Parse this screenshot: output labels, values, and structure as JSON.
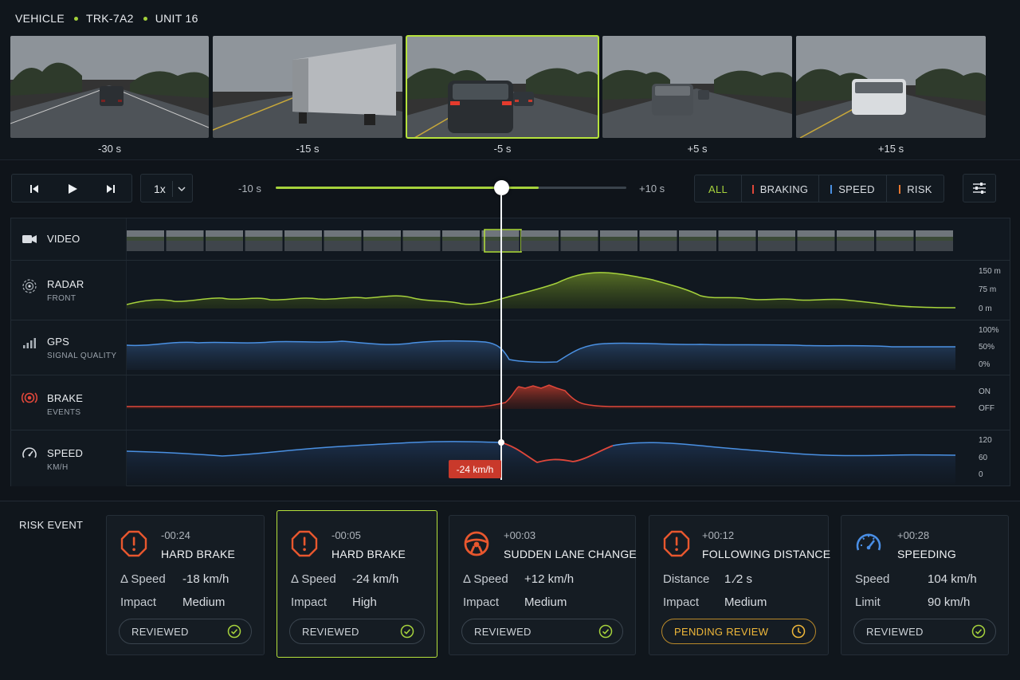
{
  "header": {
    "vehicle": "VEHICLE",
    "truck_id": "TRK-7A2",
    "unit": "UNIT 16"
  },
  "camera_frames": [
    {
      "label": "-30 s"
    },
    {
      "label": "-15 s"
    },
    {
      "label": "-5 s",
      "selected": true
    },
    {
      "label": "+5 s"
    },
    {
      "label": "+15 s"
    }
  ],
  "playback": {
    "speed": "1x",
    "range_start": "-10 s",
    "range_end": "+10 s",
    "progress": 0.75,
    "playhead": 0.65
  },
  "filters": [
    {
      "label": "ALL",
      "color": "#a6d23c",
      "active": true
    },
    {
      "label": "BRAKING",
      "color": "#e0473a"
    },
    {
      "label": "SPEED",
      "color": "#4a90e2"
    },
    {
      "label": "RISK",
      "color": "#e8772e"
    }
  ],
  "lanes": {
    "video": {
      "title": "VIDEO"
    },
    "radar": {
      "title": "RADAR",
      "sub": "FRONT",
      "scale": [
        "150 m",
        "75 m",
        "0 m"
      ],
      "color": "#a6d23c"
    },
    "gps": {
      "title": "GPS",
      "sub": "SIGNAL QUALITY",
      "scale": [
        "100%",
        "50%",
        "0%"
      ],
      "color": "#4a90e2"
    },
    "brake": {
      "title": "BRAKE",
      "sub": "EVENTS",
      "scale": [
        "ON",
        "OFF"
      ],
      "color": "#e0473a"
    },
    "speed": {
      "title": "SPEED",
      "sub": "KM/H",
      "scale": [
        "120",
        "60",
        "0"
      ],
      "color": "#4a90e2",
      "delta_badge": "-24 km/h"
    }
  },
  "risk": {
    "title": "RISK EVENT",
    "events": [
      {
        "time": "-00:24",
        "title": "HARD BRAKE",
        "icon": "alert-octagon-icon",
        "k1": "Δ Speed",
        "v1": "-18 km/h",
        "k2": "Impact",
        "v2": "Medium",
        "status": "REVIEWED",
        "pending": false
      },
      {
        "time": "-00:05",
        "title": "HARD BRAKE",
        "icon": "alert-octagon-icon",
        "k1": "Δ Speed",
        "v1": "-24 km/h",
        "k2": "Impact",
        "v2": "High",
        "status": "REVIEWED",
        "pending": false,
        "selected": true
      },
      {
        "time": "+00:03",
        "title": "SUDDEN LANE CHANGE",
        "icon": "steering-wheel-icon",
        "k1": "Δ Speed",
        "v1": "+12 km/h",
        "k2": "Impact",
        "v2": "Medium",
        "status": "REVIEWED",
        "pending": false
      },
      {
        "time": "+00:12",
        "title": "FOLLOWING DISTANCE",
        "icon": "alert-octagon-icon",
        "k1": "Distance",
        "v1": "1.⁄2 s",
        "k2": "Impact",
        "v2": "Medium",
        "status": "PENDING REVIEW",
        "pending": true
      },
      {
        "time": "+00:28",
        "title": "SPEEDING",
        "icon": "speedometer-icon",
        "k1": "Speed",
        "v1": "104 km/h",
        "k2": "Limit",
        "v2": "90 km/h",
        "status": "REVIEWED",
        "pending": false
      }
    ]
  }
}
